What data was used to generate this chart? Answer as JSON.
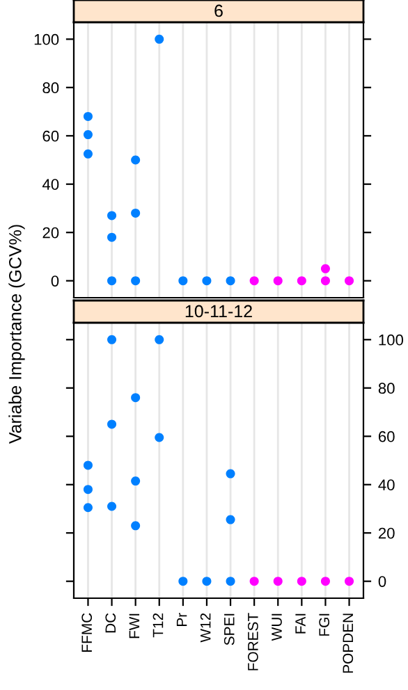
{
  "chart_data": [
    {
      "type": "scatter",
      "title": "6",
      "ylabel": "Variabe Importance (GCV%)",
      "categories": [
        null,
        null,
        null,
        null,
        null,
        null,
        null,
        null,
        null,
        null,
        null,
        null
      ],
      "ylim": [
        -7,
        107
      ],
      "yticks": [
        0,
        20,
        40,
        60,
        80,
        100
      ],
      "grid": "x",
      "marker": "circle",
      "tick_labels": "y",
      "series": [
        {
          "colors": [
            "#0080ff",
            "#0080ff",
            "#0080ff",
            "#0080ff",
            "#0080ff",
            "#0080ff",
            "#0080ff",
            "#ff00ff",
            "#ff00ff",
            "#ff00ff",
            "#ff00ff",
            "#ff00ff"
          ],
          "values": [
            68,
            27,
            50,
            100,
            0,
            0,
            0,
            0,
            0,
            0,
            5,
            0
          ]
        },
        {
          "colors": [
            "#0080ff",
            "#0080ff",
            "#0080ff",
            "#0080ff",
            "#0080ff",
            "#0080ff",
            "#0080ff",
            "#ff00ff",
            "#ff00ff",
            "#ff00ff",
            "#ff00ff",
            "#ff00ff"
          ],
          "values": [
            60.5,
            18,
            28,
            null,
            null,
            null,
            null,
            null,
            null,
            null,
            0,
            null
          ]
        },
        {
          "colors": [
            "#0080ff",
            "#0080ff",
            "#0080ff",
            "#0080ff",
            "#0080ff",
            "#0080ff",
            "#0080ff",
            "#ff00ff",
            "#ff00ff",
            "#ff00ff",
            "#ff00ff",
            "#ff00ff"
          ],
          "values": [
            52.5,
            0,
            0,
            null,
            null,
            null,
            null,
            null,
            null,
            null,
            null,
            null
          ]
        }
      ]
    },
    {
      "type": "scatter",
      "title": "10-11-12",
      "categories": [
        "FFMC",
        "DC",
        "FWI",
        "T12",
        "Pr",
        "W12",
        "SPEI",
        "FOREST",
        "WUI",
        "FAI",
        "FGI",
        "POPDEN"
      ],
      "ylim": [
        -7,
        107
      ],
      "yticks": [
        0,
        20,
        40,
        60,
        80,
        100
      ],
      "grid": "x",
      "marker": "circle",
      "series": [
        {
          "colors": [
            "#0080ff",
            "#0080ff",
            "#0080ff",
            "#0080ff",
            "#0080ff",
            "#0080ff",
            "#0080ff",
            "#ff00ff",
            "#ff00ff",
            "#ff00ff",
            "#ff00ff",
            "#ff00ff"
          ],
          "values": [
            48,
            100,
            76,
            100,
            0,
            0,
            44.5,
            0,
            0,
            0,
            0,
            0
          ]
        },
        {
          "colors": [
            "#0080ff",
            "#0080ff",
            "#0080ff",
            "#0080ff",
            "#0080ff",
            "#0080ff",
            "#0080ff",
            "#ff00ff",
            "#ff00ff",
            "#ff00ff",
            "#ff00ff",
            "#ff00ff"
          ],
          "values": [
            38,
            65,
            41.5,
            59.5,
            null,
            null,
            25.5,
            null,
            null,
            null,
            null,
            null
          ]
        },
        {
          "colors": [
            "#0080ff",
            "#0080ff",
            "#0080ff",
            "#0080ff",
            "#0080ff",
            "#0080ff",
            "#0080ff",
            "#ff00ff",
            "#ff00ff",
            "#ff00ff",
            "#ff00ff",
            "#ff00ff"
          ],
          "values": [
            30.5,
            31,
            23,
            null,
            null,
            null,
            0,
            null,
            null,
            null,
            null,
            null
          ]
        }
      ]
    }
  ]
}
